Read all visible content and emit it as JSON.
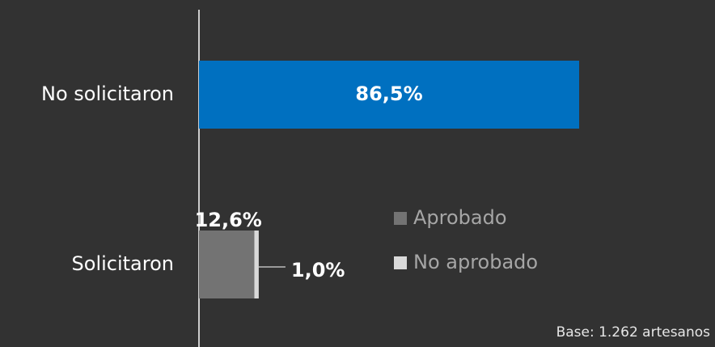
{
  "chart_data": {
    "type": "stacked_barh",
    "categories": [
      "No solicitaron",
      "Solicitaron"
    ],
    "series": [
      {
        "color": "#0070c0",
        "values": [
          86.5,
          null
        ],
        "value_labels": [
          "86,5%",
          null
        ]
      },
      {
        "name": "Aprobado",
        "color": "#737373",
        "values": [
          null,
          12.6
        ],
        "value_labels": [
          null,
          "12,6%"
        ]
      },
      {
        "name": "No aprobado",
        "color": "#d9d9d9",
        "values": [
          null,
          1.0
        ],
        "value_labels": [
          null,
          "1,0%"
        ]
      }
    ],
    "note": "Base: 1.262 artesanos"
  }
}
